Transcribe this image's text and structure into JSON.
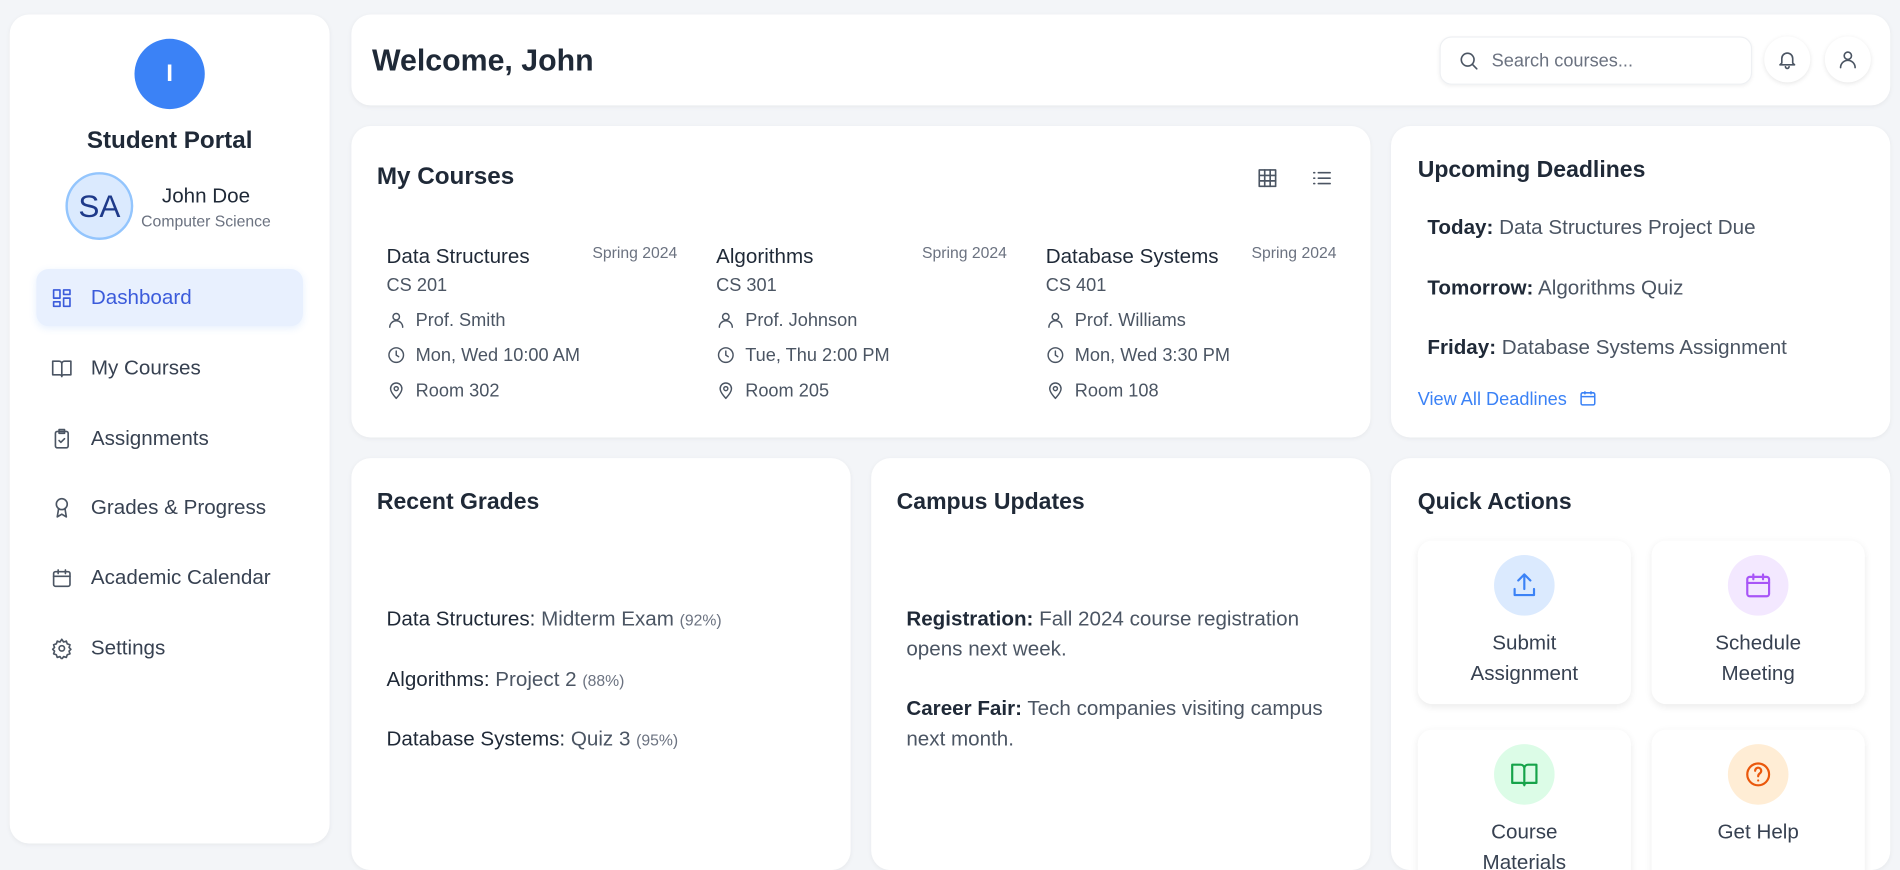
{
  "sidebar": {
    "logo": "I",
    "title": "Student Portal",
    "user": {
      "initials": "SA",
      "name": "John Doe",
      "department": "Computer Science"
    },
    "nav": [
      "Dashboard",
      "My Courses",
      "Assignments",
      "Grades & Progress",
      "Academic Calendar",
      "Settings"
    ]
  },
  "header": {
    "title": "Welcome, John",
    "search_placeholder": "Search courses..."
  },
  "courses": {
    "title": "My Courses",
    "items": [
      {
        "name": "Data Structures",
        "term": "Spring 2024",
        "code": "CS 201",
        "professor": "Prof. Smith",
        "schedule": "Mon, Wed 10:00 AM",
        "room": "Room 302"
      },
      {
        "name": "Algorithms",
        "term": "Spring 2024",
        "code": "CS 301",
        "professor": "Prof. Johnson",
        "schedule": "Tue, Thu 2:00 PM",
        "room": "Room 205"
      },
      {
        "name": "Database Systems",
        "term": "Spring 2024",
        "code": "CS 401",
        "professor": "Prof. Williams",
        "schedule": "Mon, Wed 3:30 PM",
        "room": "Room 108"
      }
    ]
  },
  "deadlines": {
    "title": "Upcoming Deadlines",
    "items": [
      {
        "when": "Today:",
        "what": "Data Structures Project Due"
      },
      {
        "when": "Tomorrow:",
        "what": "Algorithms Quiz"
      },
      {
        "when": "Friday:",
        "what": "Database Systems Assignment"
      }
    ],
    "link": "View All Deadlines"
  },
  "grades": {
    "title": "Recent Grades",
    "items": [
      {
        "course": "Data Structures:",
        "item": "Midterm Exam",
        "score": "(92%)"
      },
      {
        "course": "Algorithms:",
        "item": "Project 2",
        "score": "(88%)"
      },
      {
        "course": "Database Systems:",
        "item": "Quiz 3",
        "score": "(95%)"
      }
    ]
  },
  "updates": {
    "title": "Campus Updates",
    "items": [
      {
        "label": "Registration:",
        "text": "Fall 2024 course registration opens next week."
      },
      {
        "label": "Career Fair:",
        "text": "Tech companies visiting campus next month."
      }
    ]
  },
  "quick_actions": {
    "title": "Quick Actions",
    "items": [
      "Submit Assignment",
      "Schedule Meeting",
      "Course Materials",
      "Get Help"
    ]
  }
}
